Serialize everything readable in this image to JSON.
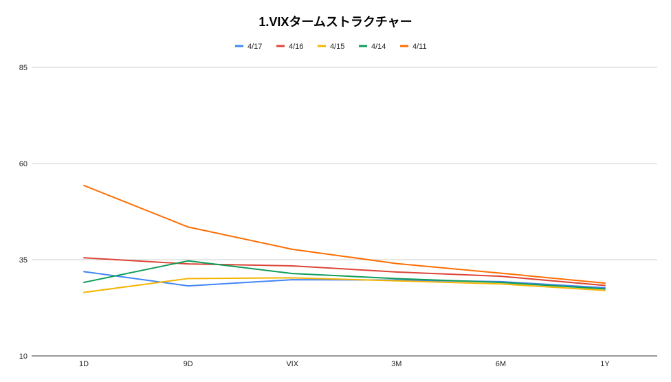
{
  "chart_data": {
    "type": "line",
    "title": "1.VIXタームストラクチャー",
    "xlabel": "",
    "ylabel": "",
    "categories": [
      "1D",
      "9D",
      "VIX",
      "3M",
      "6M",
      "1Y"
    ],
    "ylim": [
      10,
      85
    ],
    "yticks": [
      10,
      35,
      60,
      85
    ],
    "grid": true,
    "legend_position": "top",
    "series": [
      {
        "name": "4/17",
        "color": "#4285F4",
        "values": [
          31.9,
          28.2,
          29.8,
          29.7,
          29.3,
          27.7
        ]
      },
      {
        "name": "4/16",
        "color": "#DB4437",
        "values": [
          35.5,
          33.9,
          33.4,
          31.8,
          30.7,
          28.3
        ]
      },
      {
        "name": "4/15",
        "color": "#F4B400",
        "values": [
          26.5,
          30.1,
          30.3,
          29.5,
          28.7,
          27.0
        ]
      },
      {
        "name": "4/14",
        "color": "#0F9D58",
        "values": [
          29.1,
          34.7,
          31.4,
          30.1,
          29.1,
          27.4
        ]
      },
      {
        "name": "4/11",
        "color": "#FF6D01",
        "values": [
          54.3,
          43.5,
          37.7,
          34.0,
          31.5,
          28.9
        ]
      }
    ]
  }
}
